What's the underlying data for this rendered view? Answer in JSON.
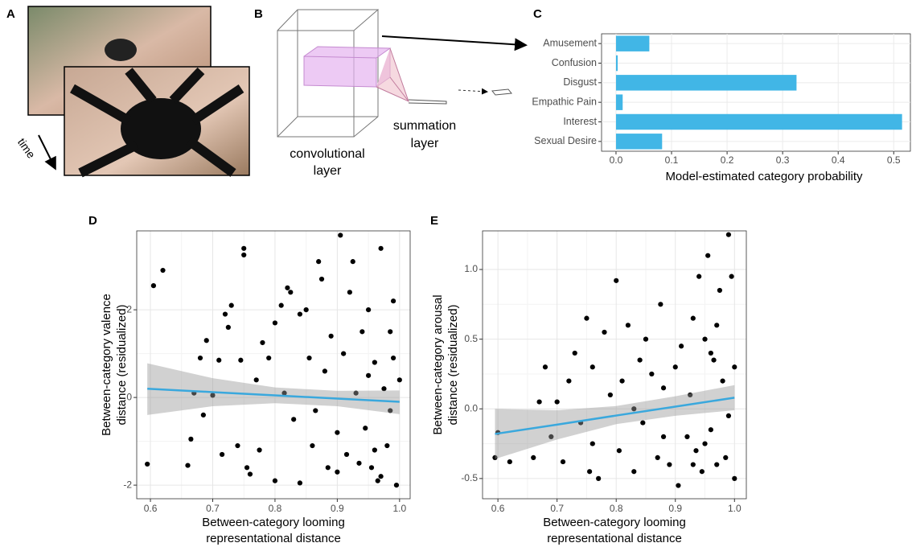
{
  "panel_a": {
    "label": "A",
    "caption": "time"
  },
  "panel_b": {
    "label": "B",
    "conv_label": [
      "convolutional",
      "layer"
    ],
    "sum_label": [
      "summation",
      "layer"
    ]
  },
  "chart_data": [
    {
      "type": "bar",
      "panel": "C",
      "orientation": "horizontal",
      "categories": [
        "Amusement",
        "Confusion",
        "Disgust",
        "Empathic Pain",
        "Interest",
        "Sexual Desire"
      ],
      "values": [
        0.06,
        0.003,
        0.325,
        0.012,
        0.515,
        0.083
      ],
      "color": "#41b6e6",
      "x_label": "Model-estimated category probability",
      "xlim": [
        -0.026,
        0.53
      ],
      "xticks": [
        {
          "value": 0,
          "label": "0.0"
        },
        0.1,
        0.2,
        0.3,
        0.4,
        0.5
      ],
      "grid": true
    },
    {
      "type": "scatter",
      "panel": "D",
      "x": [
        0.595,
        0.605,
        0.62,
        0.66,
        0.665,
        0.67,
        0.68,
        0.685,
        0.69,
        0.7,
        0.71,
        0.715,
        0.72,
        0.725,
        0.73,
        0.74,
        0.745,
        0.75,
        0.75,
        0.755,
        0.76,
        0.77,
        0.775,
        0.78,
        0.79,
        0.8,
        0.8,
        0.81,
        0.815,
        0.82,
        0.825,
        0.83,
        0.84,
        0.84,
        0.85,
        0.855,
        0.86,
        0.865,
        0.87,
        0.875,
        0.88,
        0.885,
        0.89,
        0.9,
        0.905,
        0.91,
        0.915,
        0.92,
        0.925,
        0.93,
        0.935,
        0.94,
        0.945,
        0.95,
        0.955,
        0.96,
        0.965,
        0.97,
        0.975,
        0.98,
        0.985,
        0.99,
        0.995,
        1.0,
        0.96,
        0.95,
        0.97,
        0.985,
        0.99,
        0.9
      ],
      "y": [
        -1.52,
        2.55,
        2.9,
        -1.55,
        -0.95,
        0.1,
        0.9,
        -0.4,
        1.3,
        0.05,
        0.85,
        -1.3,
        1.9,
        1.6,
        2.1,
        -1.1,
        0.85,
        3.4,
        3.25,
        -1.6,
        -1.75,
        0.4,
        -1.2,
        1.25,
        0.9,
        1.7,
        -1.9,
        2.1,
        0.1,
        2.5,
        2.4,
        -0.5,
        1.9,
        -1.95,
        2.0,
        0.9,
        -1.1,
        -0.3,
        3.1,
        2.7,
        0.6,
        -1.6,
        1.4,
        -0.8,
        3.7,
        1.0,
        -1.3,
        2.4,
        3.1,
        0.1,
        -1.5,
        1.5,
        -0.7,
        2.0,
        -1.6,
        0.8,
        -1.9,
        3.4,
        0.2,
        -1.1,
        1.5,
        2.2,
        -2.0,
        0.4,
        -1.2,
        0.5,
        -1.8,
        -0.3,
        0.9,
        -1.7
      ],
      "color": "#000000",
      "fit": {
        "color": "#3aa8dd",
        "x": [
          0.595,
          0.7,
          0.8,
          0.9,
          1.0
        ],
        "y": [
          0.2,
          0.122,
          0.048,
          -0.026,
          -0.1
        ],
        "lower": [
          -0.4,
          -0.2,
          -0.13,
          -0.2,
          -0.38
        ],
        "upper": [
          0.78,
          0.44,
          0.23,
          0.15,
          0.16
        ]
      },
      "x_label": [
        "Between-category looming",
        "representational distance"
      ],
      "y_label": [
        "Between-category valence",
        "distance (residualized)"
      ],
      "xlim": [
        0.578,
        1.017
      ],
      "ylim": [
        -2.31,
        3.8
      ],
      "xticks": [
        0.6,
        0.7,
        0.8,
        0.9,
        {
          "value": 1,
          "label": "1.0"
        }
      ],
      "yticks": [
        -2,
        0,
        2
      ],
      "grid": true
    },
    {
      "type": "scatter",
      "panel": "E",
      "x": [
        0.595,
        0.6,
        0.62,
        0.66,
        0.67,
        0.68,
        0.69,
        0.7,
        0.71,
        0.72,
        0.73,
        0.74,
        0.75,
        0.755,
        0.76,
        0.77,
        0.78,
        0.79,
        0.8,
        0.805,
        0.81,
        0.82,
        0.83,
        0.84,
        0.845,
        0.85,
        0.86,
        0.87,
        0.875,
        0.88,
        0.89,
        0.9,
        0.905,
        0.91,
        0.92,
        0.925,
        0.93,
        0.935,
        0.94,
        0.945,
        0.95,
        0.955,
        0.96,
        0.965,
        0.97,
        0.975,
        0.98,
        0.985,
        0.99,
        0.995,
        1.0,
        1.0,
        0.97,
        0.95,
        0.93,
        0.96,
        0.88,
        0.83,
        0.76,
        0.99
      ],
      "y": [
        -0.35,
        -0.17,
        -0.38,
        -0.35,
        0.05,
        0.3,
        -0.2,
        0.05,
        -0.38,
        0.2,
        0.4,
        -0.1,
        0.65,
        -0.45,
        0.3,
        -0.5,
        0.55,
        0.1,
        0.92,
        -0.3,
        0.2,
        0.6,
        -0.45,
        0.35,
        -0.1,
        0.5,
        0.25,
        -0.35,
        0.75,
        0.15,
        -0.4,
        0.3,
        -0.55,
        0.45,
        -0.2,
        0.1,
        0.65,
        -0.3,
        0.95,
        -0.45,
        0.5,
        1.1,
        -0.15,
        0.35,
        -0.4,
        0.85,
        0.2,
        -0.35,
        1.25,
        0.95,
        0.3,
        -0.5,
        0.6,
        -0.25,
        -0.4,
        0.4,
        -0.2,
        0.0,
        -0.25,
        -0.05
      ],
      "color": "#000000",
      "fit": {
        "color": "#3aa8dd",
        "x": [
          0.595,
          0.7,
          0.8,
          0.9,
          1.0
        ],
        "y": [
          -0.18,
          -0.113,
          -0.048,
          0.016,
          0.08
        ],
        "lower": [
          -0.36,
          -0.22,
          -0.11,
          -0.05,
          -0.01
        ],
        "upper": [
          0.0,
          -0.01,
          0.02,
          0.09,
          0.17
        ]
      },
      "x_label": [
        "Between-category looming",
        "representational distance"
      ],
      "y_label": [
        "Between-category arousal",
        "distance (residualized)"
      ],
      "xlim": [
        0.574,
        1.02
      ],
      "ylim": [
        -0.645,
        1.277
      ],
      "xticks": [
        0.6,
        0.7,
        0.8,
        0.9,
        {
          "value": 1,
          "label": "1.0"
        }
      ],
      "yticks": [
        -0.5,
        {
          "value": 0,
          "label": "0.0"
        },
        0.5,
        {
          "value": 1,
          "label": "1.0"
        }
      ],
      "grid": true
    }
  ]
}
